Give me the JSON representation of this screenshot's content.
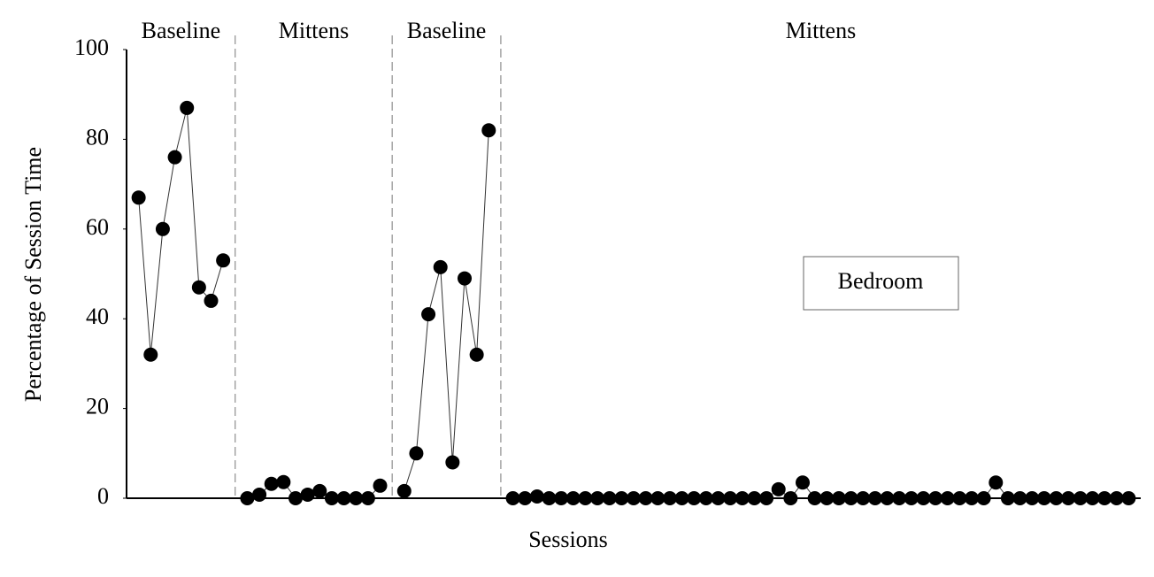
{
  "chart_data": {
    "type": "line",
    "y_label": "Percentage of Session Time",
    "x_label": "Sessions",
    "annotation": "Bedroom",
    "phase_labels": [
      "Baseline",
      "Mittens",
      "Baseline",
      "Mittens"
    ],
    "phase_lines": [
      9,
      22,
      31
    ],
    "x": [
      1,
      2,
      3,
      4,
      5,
      6,
      7,
      8,
      9,
      10,
      11,
      12,
      13,
      14,
      15,
      16,
      17,
      18,
      19,
      20,
      21,
      22,
      23,
      24,
      25,
      26,
      27,
      28,
      29,
      30,
      31,
      32,
      33,
      34,
      35,
      36,
      37,
      38,
      39,
      40,
      41,
      42,
      43,
      44,
      45,
      46,
      47,
      48,
      49,
      50,
      51,
      52,
      53,
      54,
      55,
      56,
      57,
      58,
      59,
      60,
      61,
      62,
      63,
      64,
      65,
      66,
      67,
      68,
      69,
      70,
      71,
      72,
      73,
      74,
      75,
      76,
      77,
      78,
      79,
      80,
      81,
      82,
      83
    ],
    "series": [
      {
        "color": "#000000",
        "values": [
          67,
          32,
          60,
          76,
          87,
          47,
          44,
          53,
          null,
          0,
          0.8,
          3.2,
          3.6,
          0,
          0.8,
          1.6,
          0,
          0,
          0,
          0,
          2.8,
          null,
          1.6,
          10,
          41,
          51.5,
          8,
          49,
          32,
          82,
          null,
          0,
          0,
          0.4,
          0,
          0,
          0,
          0,
          0,
          0,
          0,
          0,
          0,
          0,
          0,
          0,
          0,
          0,
          0,
          0,
          0,
          0,
          0,
          2,
          0,
          3.5,
          0,
          0,
          0,
          0,
          0,
          0,
          0,
          0,
          0,
          0,
          0,
          0,
          0,
          0,
          0,
          3.5,
          0,
          0,
          0,
          0,
          0,
          0,
          0,
          0,
          0,
          0,
          0
        ]
      }
    ],
    "xlim": [
      0,
      84
    ],
    "ylim": [
      0,
      100
    ],
    "yticks": [
      0,
      20,
      40,
      60,
      80,
      100
    ],
    "grid": false
  }
}
